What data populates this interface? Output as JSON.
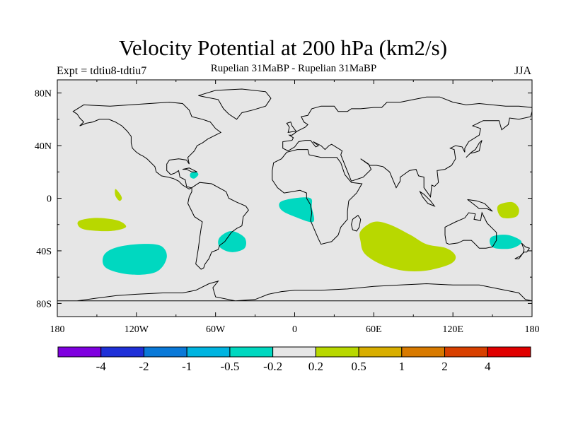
{
  "chart_data": {
    "type": "map-contour",
    "title": "Velocity Potential at 200 hPa (km2/s)",
    "subtitle": "Rupelian  31MaBP - Rupelian  31MaBP",
    "left_label": "Expt = tdtiu8-tdtiu7",
    "right_label": "JJA",
    "x_ticks": [
      {
        "value": -180,
        "label": "180"
      },
      {
        "value": -120,
        "label": "120W"
      },
      {
        "value": -60,
        "label": "60W"
      },
      {
        "value": 0,
        "label": "0"
      },
      {
        "value": 60,
        "label": "60E"
      },
      {
        "value": 120,
        "label": "120E"
      },
      {
        "value": 180,
        "label": "180"
      }
    ],
    "y_ticks": [
      {
        "value": 80,
        "label": "80N"
      },
      {
        "value": 40,
        "label": "40N"
      },
      {
        "value": 0,
        "label": "0"
      },
      {
        "value": -40,
        "label": "40S"
      },
      {
        "value": -80,
        "label": "80S"
      }
    ],
    "xlim": [
      -180,
      180
    ],
    "ylim": [
      -90,
      90
    ],
    "background_color": "#e6e6e6",
    "colorbar": {
      "colors": [
        "#7f00df",
        "#1f30d8",
        "#0a79d8",
        "#00b4e0",
        "#00d8c0",
        "#e6e6e6",
        "#b8d800",
        "#d8ae00",
        "#d87a00",
        "#d84000",
        "#e00000"
      ],
      "labels": [
        "-4",
        "-2",
        "-1",
        "-0.5",
        "-0.2",
        "0.2",
        "0.5",
        "1",
        "2",
        "4"
      ]
    },
    "anomaly_regions": [
      {
        "name": "south-indian-ocean",
        "category": "0.2 to 0.5",
        "color": "#b8d800",
        "points": [
          [
            50,
            -25
          ],
          [
            60,
            -18
          ],
          [
            72,
            -20
          ],
          [
            88,
            -28
          ],
          [
            100,
            -35
          ],
          [
            115,
            -38
          ],
          [
            122,
            -44
          ],
          [
            118,
            -50
          ],
          [
            100,
            -55
          ],
          [
            82,
            -55
          ],
          [
            65,
            -50
          ],
          [
            53,
            -42
          ],
          [
            50,
            -33
          ]
        ]
      },
      {
        "name": "south-pacific-west",
        "category": "0.2 to 0.5",
        "color": "#b8d800",
        "points": [
          [
            -163,
            -17
          ],
          [
            -150,
            -15
          ],
          [
            -134,
            -17
          ],
          [
            -128,
            -22
          ],
          [
            -140,
            -25
          ],
          [
            -158,
            -24
          ],
          [
            -164,
            -21
          ]
        ]
      },
      {
        "name": "east-pacific-equator",
        "category": "0.2 to 0.5",
        "color": "#b8d800",
        "points": [
          [
            -136,
            7
          ],
          [
            -133,
            4
          ],
          [
            -131,
            0
          ],
          [
            -133,
            -2
          ],
          [
            -136,
            2
          ]
        ]
      },
      {
        "name": "tasman-northeast",
        "category": "0.2 to 0.5",
        "color": "#b8d800",
        "points": [
          [
            155,
            -5
          ],
          [
            165,
            -3
          ],
          [
            170,
            -8
          ],
          [
            168,
            -14
          ],
          [
            158,
            -15
          ],
          [
            154,
            -10
          ]
        ]
      },
      {
        "name": "south-pacific-east",
        "category": "-0.5 to -0.2",
        "color": "#00d8c0",
        "points": [
          [
            -137,
            -38
          ],
          [
            -120,
            -35
          ],
          [
            -102,
            -36
          ],
          [
            -97,
            -45
          ],
          [
            -105,
            -56
          ],
          [
            -125,
            -58
          ],
          [
            -143,
            -53
          ],
          [
            -145,
            -44
          ]
        ]
      },
      {
        "name": "south-atlantic-west",
        "category": "-0.5 to -0.2",
        "color": "#00d8c0",
        "points": [
          [
            -57,
            -30
          ],
          [
            -48,
            -25
          ],
          [
            -38,
            -30
          ],
          [
            -38,
            -38
          ],
          [
            -48,
            -41
          ],
          [
            -57,
            -37
          ]
        ]
      },
      {
        "name": "central-africa-west",
        "category": "-0.5 to -0.2",
        "color": "#00d8c0",
        "points": [
          [
            -11,
            -3
          ],
          [
            0,
            0
          ],
          [
            12,
            0
          ],
          [
            13,
            -7
          ],
          [
            14,
            -18
          ],
          [
            0,
            -14
          ],
          [
            -10,
            -9
          ]
        ]
      },
      {
        "name": "tasman-sea",
        "category": "-0.5 to -0.2",
        "color": "#00d8c0",
        "points": [
          [
            150,
            -29
          ],
          [
            162,
            -28
          ],
          [
            172,
            -33
          ],
          [
            165,
            -38
          ],
          [
            152,
            -38
          ],
          [
            148,
            -34
          ]
        ]
      },
      {
        "name": "caribbean",
        "category": "-0.5 to -0.2",
        "color": "#00d8c0",
        "points": [
          [
            -79,
            19
          ],
          [
            -75,
            20
          ],
          [
            -73,
            18
          ],
          [
            -76,
            15
          ],
          [
            -79,
            16
          ]
        ]
      }
    ]
  }
}
